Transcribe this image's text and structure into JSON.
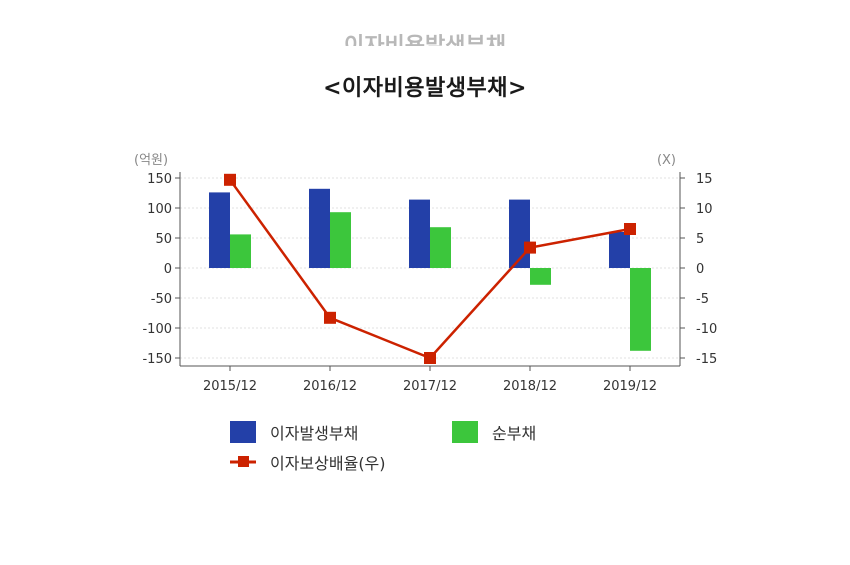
{
  "ghost_title": "이자비용발생부채",
  "chart_data": {
    "type": "bar",
    "title": "<이자비용발생부채>",
    "y_left_unit": "(억원)",
    "y_right_unit": "(X)",
    "categories": [
      "2015/12",
      "2016/12",
      "2017/12",
      "2018/12",
      "2019/12"
    ],
    "ylim_left": [
      -150,
      150
    ],
    "ylim_right": [
      -15,
      15
    ],
    "y_left_ticks": [
      "150",
      "100",
      "50",
      "0",
      "-50",
      "-100",
      "-150"
    ],
    "y_right_ticks": [
      "15",
      "10",
      "5",
      "0",
      "-5",
      "-10",
      "-15"
    ],
    "series": [
      {
        "name": "이자발생부채",
        "kind": "bar",
        "color": "#2340a8",
        "values": [
          126,
          132,
          114,
          114,
          60
        ]
      },
      {
        "name": "순부채",
        "kind": "bar",
        "color": "#3cc63c",
        "values": [
          56,
          93,
          68,
          -28,
          -138
        ]
      },
      {
        "name": "이자보상배율(우)",
        "kind": "line",
        "axis": "right",
        "color": "#cc2200",
        "values": [
          14.7,
          -8.3,
          -15.0,
          3.4,
          6.5
        ]
      }
    ],
    "legend": "bottom"
  }
}
